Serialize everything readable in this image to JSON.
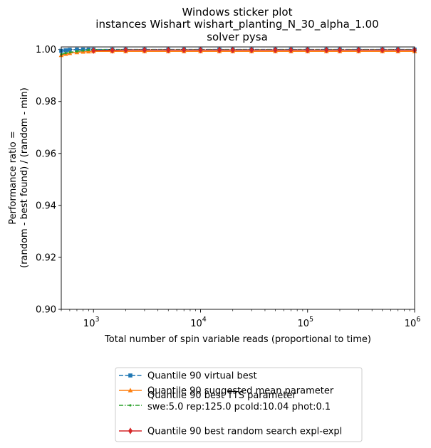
{
  "chart_data": {
    "type": "line",
    "title_lines": [
      "Windows sticker plot",
      "instances Wishart wishart_planting_N_30_alpha_1.00",
      "solver pysa"
    ],
    "xlabel": "Total number of spin variable reads (proportional to time)",
    "ylabel_lines": [
      "Performance ratio =",
      "(random - best found) / (random - min)"
    ],
    "xscale": "log",
    "xlim": [
      500,
      1000000
    ],
    "ylim": [
      0.9,
      1.001
    ],
    "xticks": [
      {
        "value": 1000,
        "base": "10",
        "exp": "3"
      },
      {
        "value": 10000,
        "base": "10",
        "exp": "4"
      },
      {
        "value": 100000,
        "base": "10",
        "exp": "5"
      },
      {
        "value": 1000000,
        "base": "10",
        "exp": "6"
      }
    ],
    "yticks": [
      {
        "value": 0.9,
        "label": "0.90"
      },
      {
        "value": 0.92,
        "label": "0.92"
      },
      {
        "value": 0.94,
        "label": "0.94"
      },
      {
        "value": 0.96,
        "label": "0.96"
      },
      {
        "value": 0.98,
        "label": "0.98"
      },
      {
        "value": 1.0,
        "label": "1.00"
      }
    ],
    "reference_line": {
      "y": 1.0,
      "style": "dotted",
      "color": "#000000"
    },
    "legend": {
      "placement": "below-center"
    },
    "series": [
      {
        "name": "Quantile 90 virtual best",
        "color": "#1f77b4",
        "marker": "square",
        "linestyle": "dashed",
        "x": [
          500,
          550,
          600,
          700,
          800,
          900,
          1000,
          1500,
          2000,
          3000,
          5000,
          7000,
          10000,
          15000,
          20000,
          30000,
          50000,
          70000,
          100000,
          150000,
          200000,
          300000,
          500000,
          700000,
          1000000
        ],
        "y": [
          0.9995,
          0.9997,
          0.9999,
          1.0,
          1.0,
          1.0,
          1.0,
          1.0,
          1.0,
          1.0,
          1.0,
          1.0,
          1.0,
          1.0,
          1.0,
          1.0,
          1.0,
          1.0,
          1.0,
          1.0,
          1.0,
          1.0,
          1.0,
          1.0,
          1.0
        ]
      },
      {
        "name": "Quantile 90 suggested mean parameter",
        "color": "#ff7f0e",
        "marker": "triangle",
        "linestyle": "solid",
        "x": [
          500,
          550,
          600,
          700,
          800,
          900,
          1000,
          1500,
          2000,
          3000,
          5000,
          7000,
          10000,
          15000,
          20000,
          30000,
          50000,
          70000,
          100000,
          150000,
          200000,
          300000,
          500000,
          700000,
          1000000
        ],
        "y": [
          0.9978,
          0.9983,
          0.9986,
          0.9989,
          0.9991,
          0.9992,
          0.9993,
          0.9993,
          0.9993,
          0.9993,
          0.9993,
          0.9993,
          0.9993,
          0.9993,
          0.9993,
          0.9993,
          0.9993,
          0.9993,
          0.9993,
          0.9993,
          0.9993,
          0.9993,
          0.9993,
          0.9993,
          0.9993
        ]
      },
      {
        "name": "Quantile 90 best TTS parameter\nswe:5.0 rep:125.0 pcold:10.04 phot:0.1",
        "color": "#2ca02c",
        "marker": "dot",
        "linestyle": "dashdot",
        "x": [
          500,
          550,
          600,
          700,
          800,
          900,
          1000,
          1500,
          2000,
          3000,
          5000,
          7000,
          10000,
          15000,
          20000,
          30000,
          50000,
          70000,
          100000,
          150000,
          200000,
          300000,
          500000,
          700000,
          1000000
        ],
        "y": [
          0.9982,
          0.9986,
          0.9989,
          0.9993,
          0.9996,
          0.9998,
          0.9999,
          0.9999,
          0.9999,
          0.9999,
          0.9999,
          0.9999,
          0.9999,
          0.9999,
          0.9999,
          0.9999,
          0.9999,
          0.9999,
          0.9999,
          0.9999,
          0.9999,
          0.9999,
          0.9999,
          0.9999,
          0.9999
        ]
      },
      {
        "name": "Quantile 90  best random search expl-expl",
        "color": "#d62728",
        "marker": "diamond",
        "linestyle": "solid",
        "x": [
          1000,
          1500,
          2000,
          3000,
          5000,
          7000,
          10000,
          15000,
          20000,
          30000,
          50000,
          70000,
          100000,
          150000,
          200000,
          300000,
          500000,
          700000,
          1000000
        ],
        "y": [
          0.9996,
          0.9997,
          0.9998,
          0.9998,
          0.9998,
          0.9998,
          0.9998,
          0.9998,
          0.9998,
          0.9998,
          0.9998,
          0.9998,
          0.9998,
          0.9998,
          0.9998,
          0.9998,
          0.9998,
          0.9998,
          0.9998
        ]
      }
    ]
  }
}
